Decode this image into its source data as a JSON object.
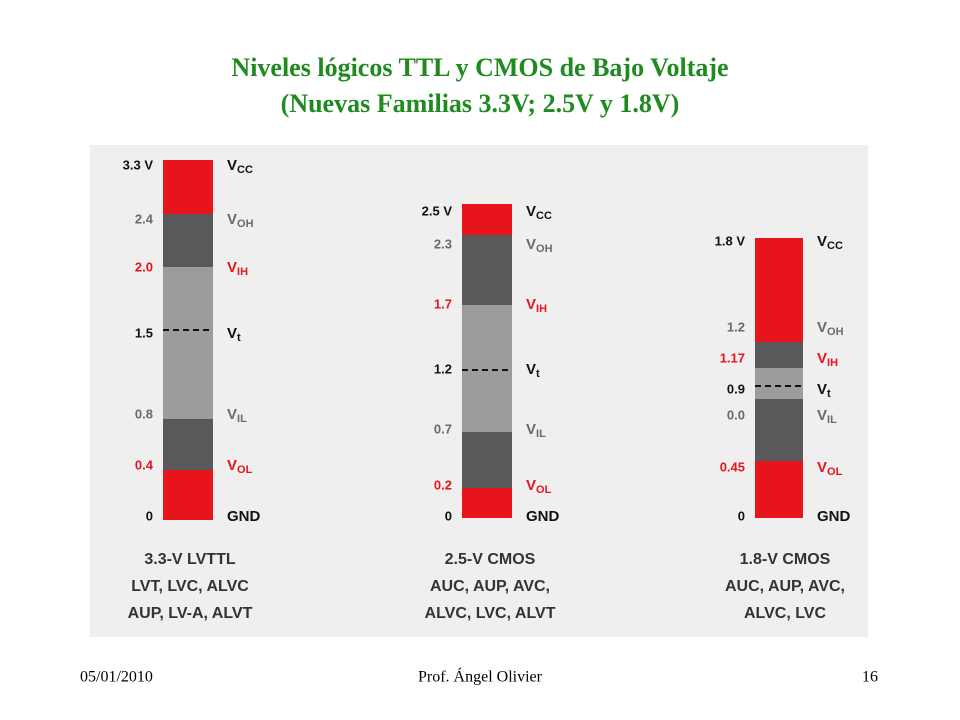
{
  "title": [
    "Niveles lógicos TTL y CMOS  de Bajo Voltaje",
    "(Nuevas Familias 3.3V; 2.5V y 1.8V)"
  ],
  "columns": [
    {
      "levels": [
        {
          "value": "3.3 V",
          "name": "V",
          "sub": "CC"
        },
        {
          "value": "2.4",
          "name": "V",
          "sub": "OH"
        },
        {
          "value": "2.0",
          "name": "V",
          "sub": "IH"
        },
        {
          "value": "1.5",
          "name": "V",
          "sub": "t"
        },
        {
          "value": "0.8",
          "name": "V",
          "sub": "IL"
        },
        {
          "value": "0.4",
          "name": "V",
          "sub": "OL"
        },
        {
          "value": "0",
          "name": "GND"
        }
      ],
      "caption": [
        "3.3-V LVTTL",
        "LVT, LVC, ALVC",
        "AUP, LV-A, ALVT"
      ]
    },
    {
      "levels": [
        {
          "value": "2.5 V",
          "name": "V",
          "sub": "CC"
        },
        {
          "value": "2.3",
          "name": "V",
          "sub": "OH"
        },
        {
          "value": "1.7",
          "name": "V",
          "sub": "IH"
        },
        {
          "value": "1.2",
          "name": "V",
          "sub": "t"
        },
        {
          "value": "0.7",
          "name": "V",
          "sub": "IL"
        },
        {
          "value": "0.2",
          "name": "V",
          "sub": "OL"
        },
        {
          "value": "0",
          "name": "GND"
        }
      ],
      "caption": [
        "2.5-V CMOS",
        "AUC, AUP, AVC,",
        "ALVC, LVC, ALVT"
      ]
    },
    {
      "levels": [
        {
          "value": "1.8 V",
          "name": "V",
          "sub": "CC"
        },
        {
          "value": "1.2",
          "name": "V",
          "sub": "OH"
        },
        {
          "value": "1.17",
          "name": "V",
          "sub": "IH"
        },
        {
          "value": "0.9",
          "name": "V",
          "sub": "t"
        },
        {
          "value": "0.0",
          "name": "V",
          "sub": "IL"
        },
        {
          "value": "0.45",
          "name": "V",
          "sub": "OL"
        },
        {
          "value": "0",
          "name": "GND"
        }
      ],
      "caption": [
        "1.8-V CMOS",
        "AUC, AUP, AVC,",
        "ALVC, LVC"
      ]
    }
  ],
  "footer": {
    "date": "05/01/2010",
    "author": "Prof. Ángel Olivier",
    "page": "16"
  }
}
